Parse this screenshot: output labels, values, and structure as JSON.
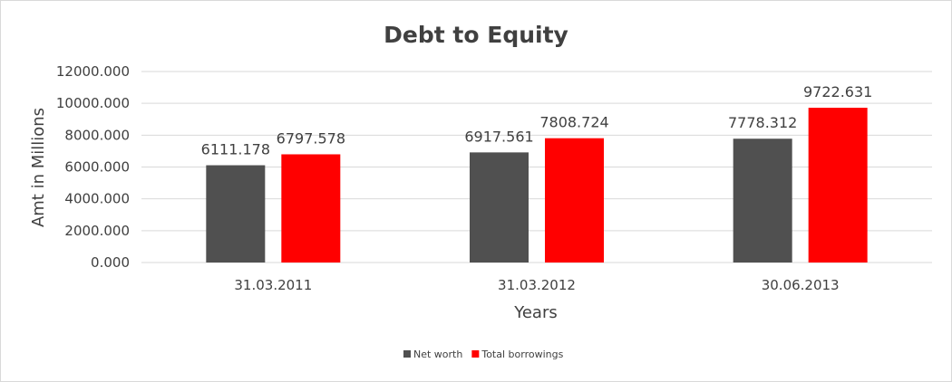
{
  "chart_data": {
    "type": "bar",
    "title": "Debt to Equity",
    "xlabel": "Years",
    "ylabel": "Amt in Millions",
    "categories": [
      "31.03.2011",
      "31.03.2012",
      "30.06.2013"
    ],
    "series": [
      {
        "name": "Net worth",
        "color": "#505050",
        "values": [
          6111.178,
          6917.561,
          7778.312
        ],
        "labels": [
          "6111.178",
          "6917.561",
          "7778.312"
        ]
      },
      {
        "name": "Total borrowings",
        "color": "#ff0000",
        "values": [
          6797.578,
          7808.724,
          9722.631
        ],
        "labels": [
          "6797.578",
          "7808.724",
          "9722.631"
        ]
      }
    ],
    "ylim": [
      0,
      12000
    ],
    "yticks": [
      0,
      2000,
      4000,
      6000,
      8000,
      10000,
      12000
    ],
    "ytick_labels": [
      "0.000",
      "2000.000",
      "4000.000",
      "6000.000",
      "8000.000",
      "10000.000",
      "12000.000"
    ],
    "grid": true,
    "legend_position": "bottom"
  }
}
